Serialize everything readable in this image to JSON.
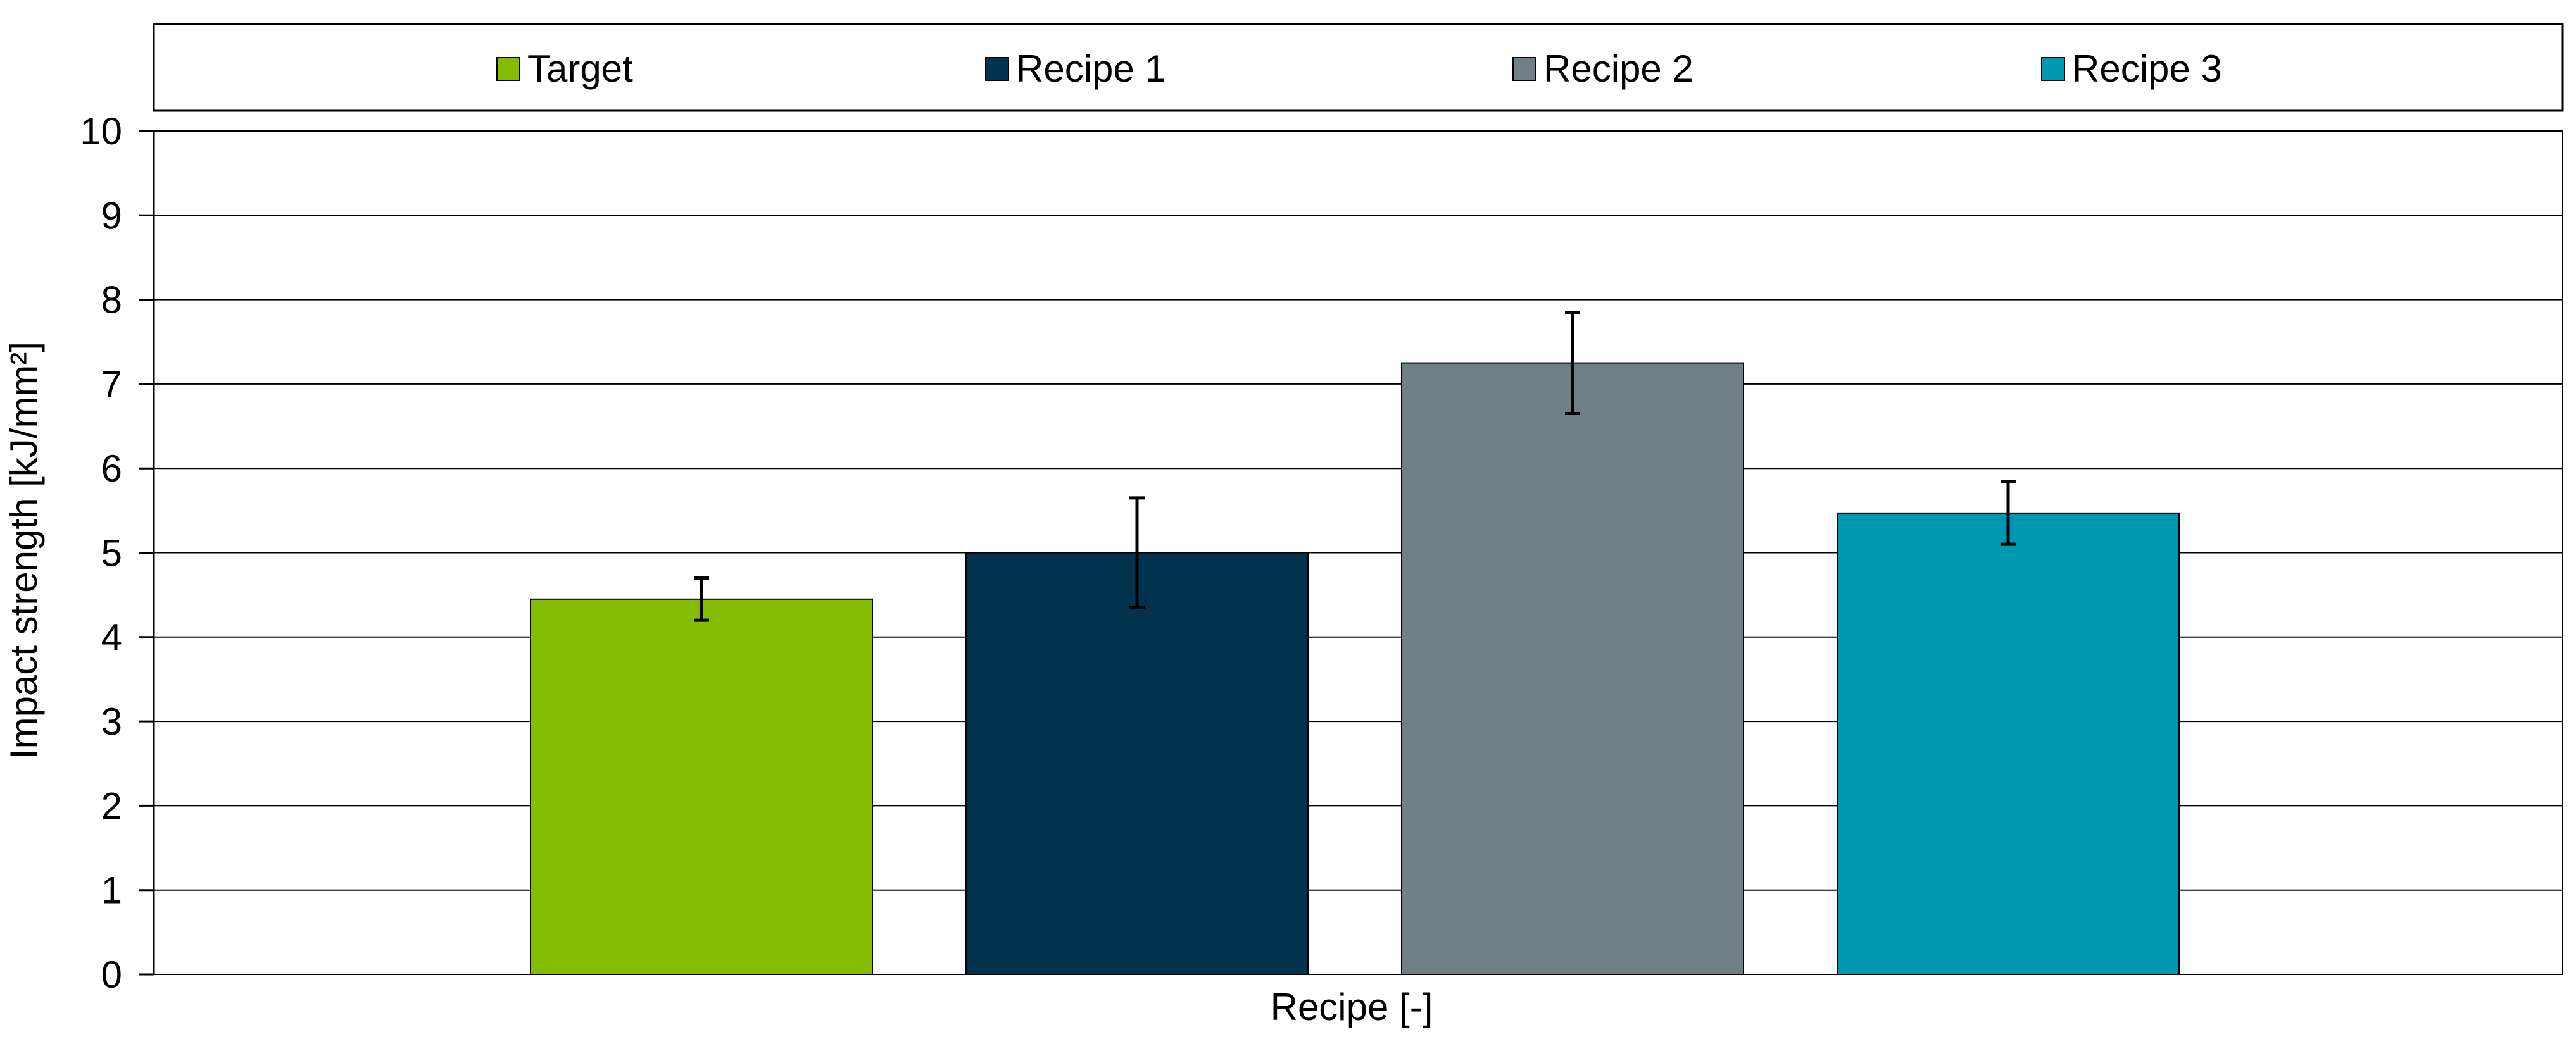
{
  "chart_data": {
    "type": "bar",
    "title": "",
    "xlabel": "Recipe   [-]",
    "ylabel": "Impact strength   [kJ/mm²]",
    "ylim": [
      0,
      10
    ],
    "yticks": [
      "0",
      "1",
      "2",
      "3",
      "4",
      "5",
      "6",
      "7",
      "8",
      "9",
      "10"
    ],
    "grid": true,
    "legend_position": "top",
    "series": [
      {
        "name": "Target",
        "value": 4.45,
        "error": 0.25,
        "color": "#84bd00"
      },
      {
        "name": "Recipe 1",
        "value": 5.0,
        "error": 0.65,
        "color": "#03324f"
      },
      {
        "name": "Recipe 2",
        "value": 7.25,
        "error": 0.6,
        "color": "#6e7f86"
      },
      {
        "name": "Recipe 3",
        "value": 5.47,
        "error": 0.37,
        "color": "#0097b0"
      }
    ]
  }
}
